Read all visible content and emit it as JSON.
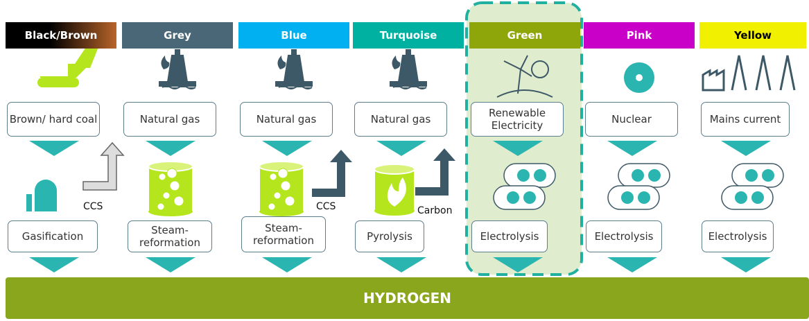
{
  "columns": [
    {
      "header": "Black/Brown",
      "source": "Brown/ hard coal",
      "process": "Gasification",
      "note": "CCS"
    },
    {
      "header": "Grey",
      "source": "Natural gas",
      "process": "Steam-reformation"
    },
    {
      "header": "Blue",
      "source": "Natural gas",
      "process": "Steam-reformation",
      "note": "CCS"
    },
    {
      "header": "Turquoise",
      "source": "Natural gas",
      "process": "Pyrolysis",
      "note": "Carbon"
    },
    {
      "header": "Green",
      "source": "Renewable Electricity",
      "process": "Electrolysis"
    },
    {
      "header": "Pink",
      "source": "Nuclear",
      "process": "Electrolysis"
    },
    {
      "header": "Yellow",
      "source": "Mains current",
      "process": "Electrolysis"
    }
  ],
  "footer": "HYDROGEN"
}
